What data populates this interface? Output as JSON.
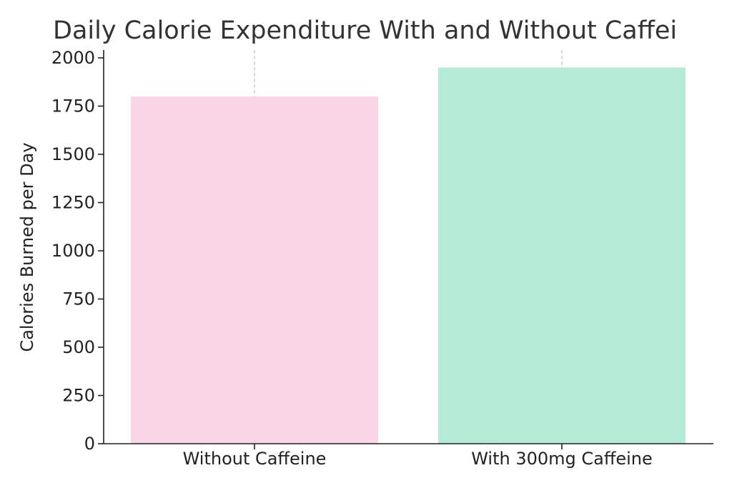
{
  "chart_data": {
    "type": "bar",
    "title": "Daily Calorie Expenditure With and Without Caffei",
    "xlabel": "",
    "ylabel": "Calories Burned per Day",
    "categories": [
      "Without Caffeine",
      "With 300mg Caffeine"
    ],
    "values": [
      1800,
      1950
    ],
    "colors": [
      "#f9d5e5",
      "#b5ead7"
    ],
    "ylim": [
      0,
      2000
    ],
    "yticks": [
      0,
      250,
      500,
      750,
      1000,
      1250,
      1500,
      1750,
      2000
    ],
    "grid": "x-dashed",
    "legend": "none"
  }
}
